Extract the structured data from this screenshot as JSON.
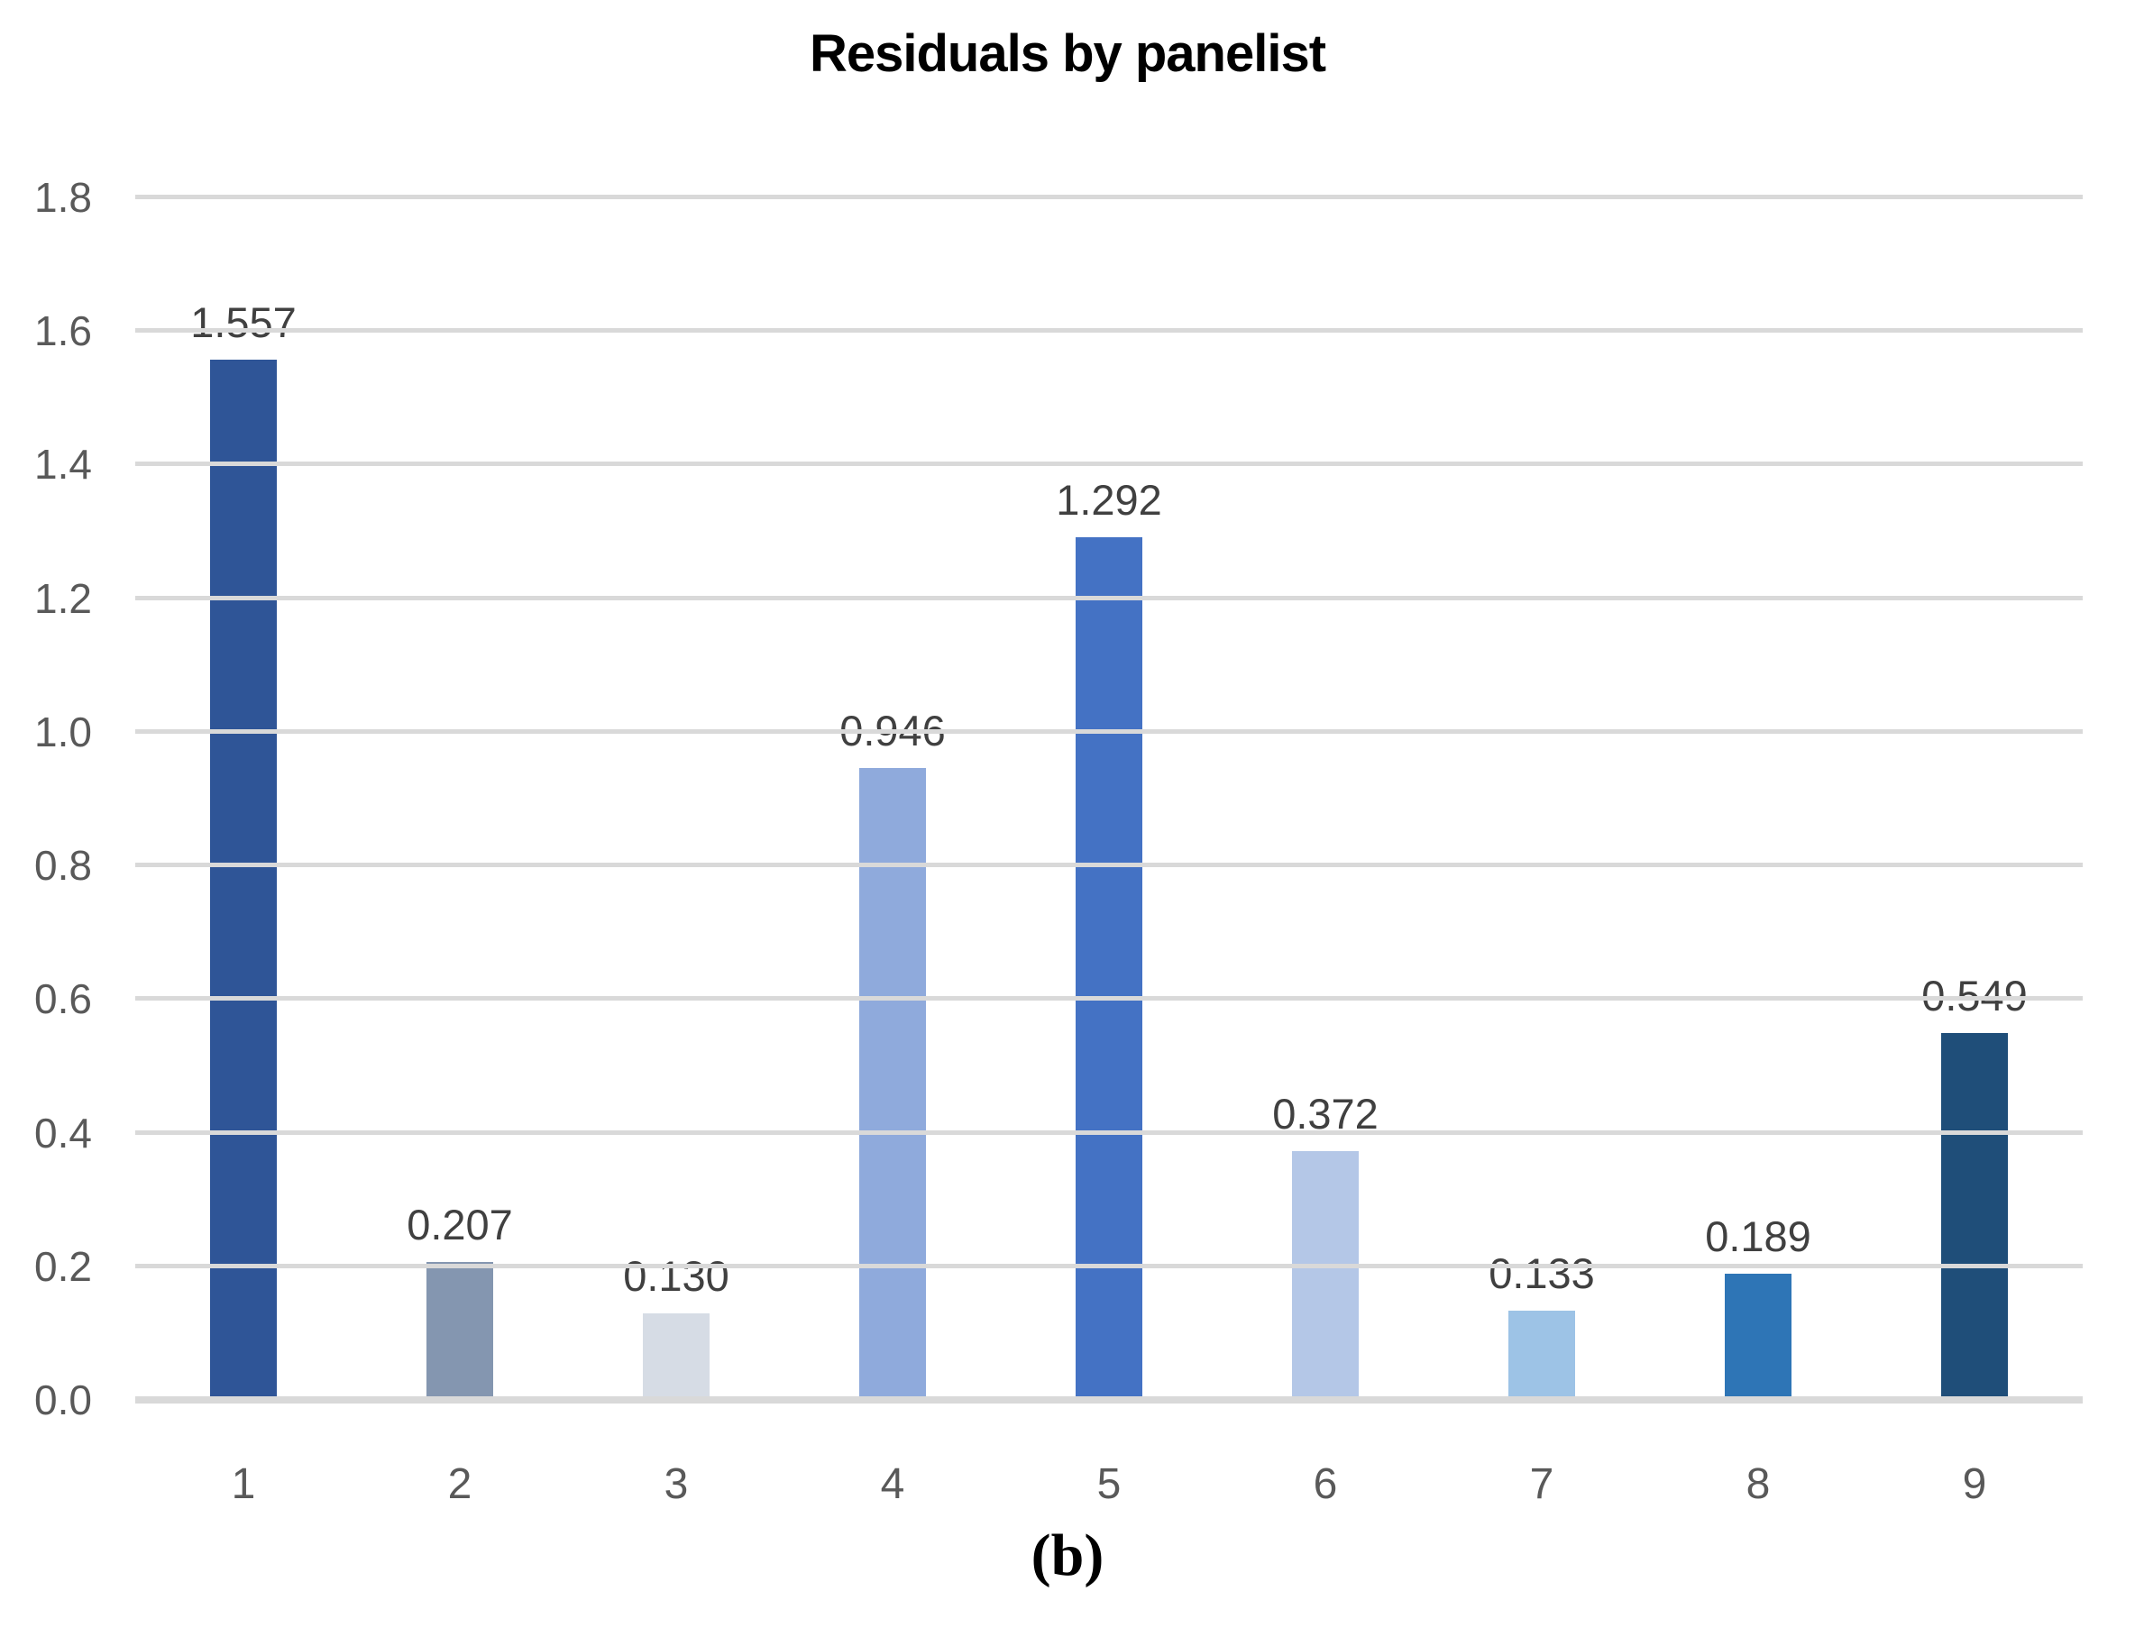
{
  "chart": {
    "title": "Residuals by panelist",
    "caption": "(b)"
  },
  "chart_data": {
    "type": "bar",
    "title": "Residuals by panelist",
    "categories": [
      "1",
      "2",
      "3",
      "4",
      "5",
      "6",
      "7",
      "8",
      "9"
    ],
    "values": [
      1.557,
      0.207,
      0.13,
      0.946,
      1.292,
      0.372,
      0.133,
      0.189,
      0.549
    ],
    "value_labels": [
      "1.557",
      "0.207",
      "0.130",
      "0.946",
      "1.292",
      "0.372",
      "0.133",
      "0.189",
      "0.549"
    ],
    "bar_colors": [
      "#2F5597",
      "#8496B0",
      "#D6DCE5",
      "#8FAADC",
      "#4472C4",
      "#B4C7E7",
      "#9DC3E6",
      "#2E75B6",
      "#1F4E79"
    ],
    "xlabel": "",
    "ylabel": "",
    "ylim": [
      0,
      1.8
    ],
    "yticks": [
      "0.0",
      "0.2",
      "0.4",
      "0.6",
      "0.8",
      "1.0",
      "1.2",
      "1.4",
      "1.6",
      "1.8"
    ],
    "grid": true,
    "legend": false,
    "caption": "(b)",
    "colors": {
      "gridline": "#d9d9d9",
      "axis_line": "#d9d9d9",
      "tick_label": "#595959",
      "value_label": "#404040",
      "title": "#000000"
    }
  }
}
